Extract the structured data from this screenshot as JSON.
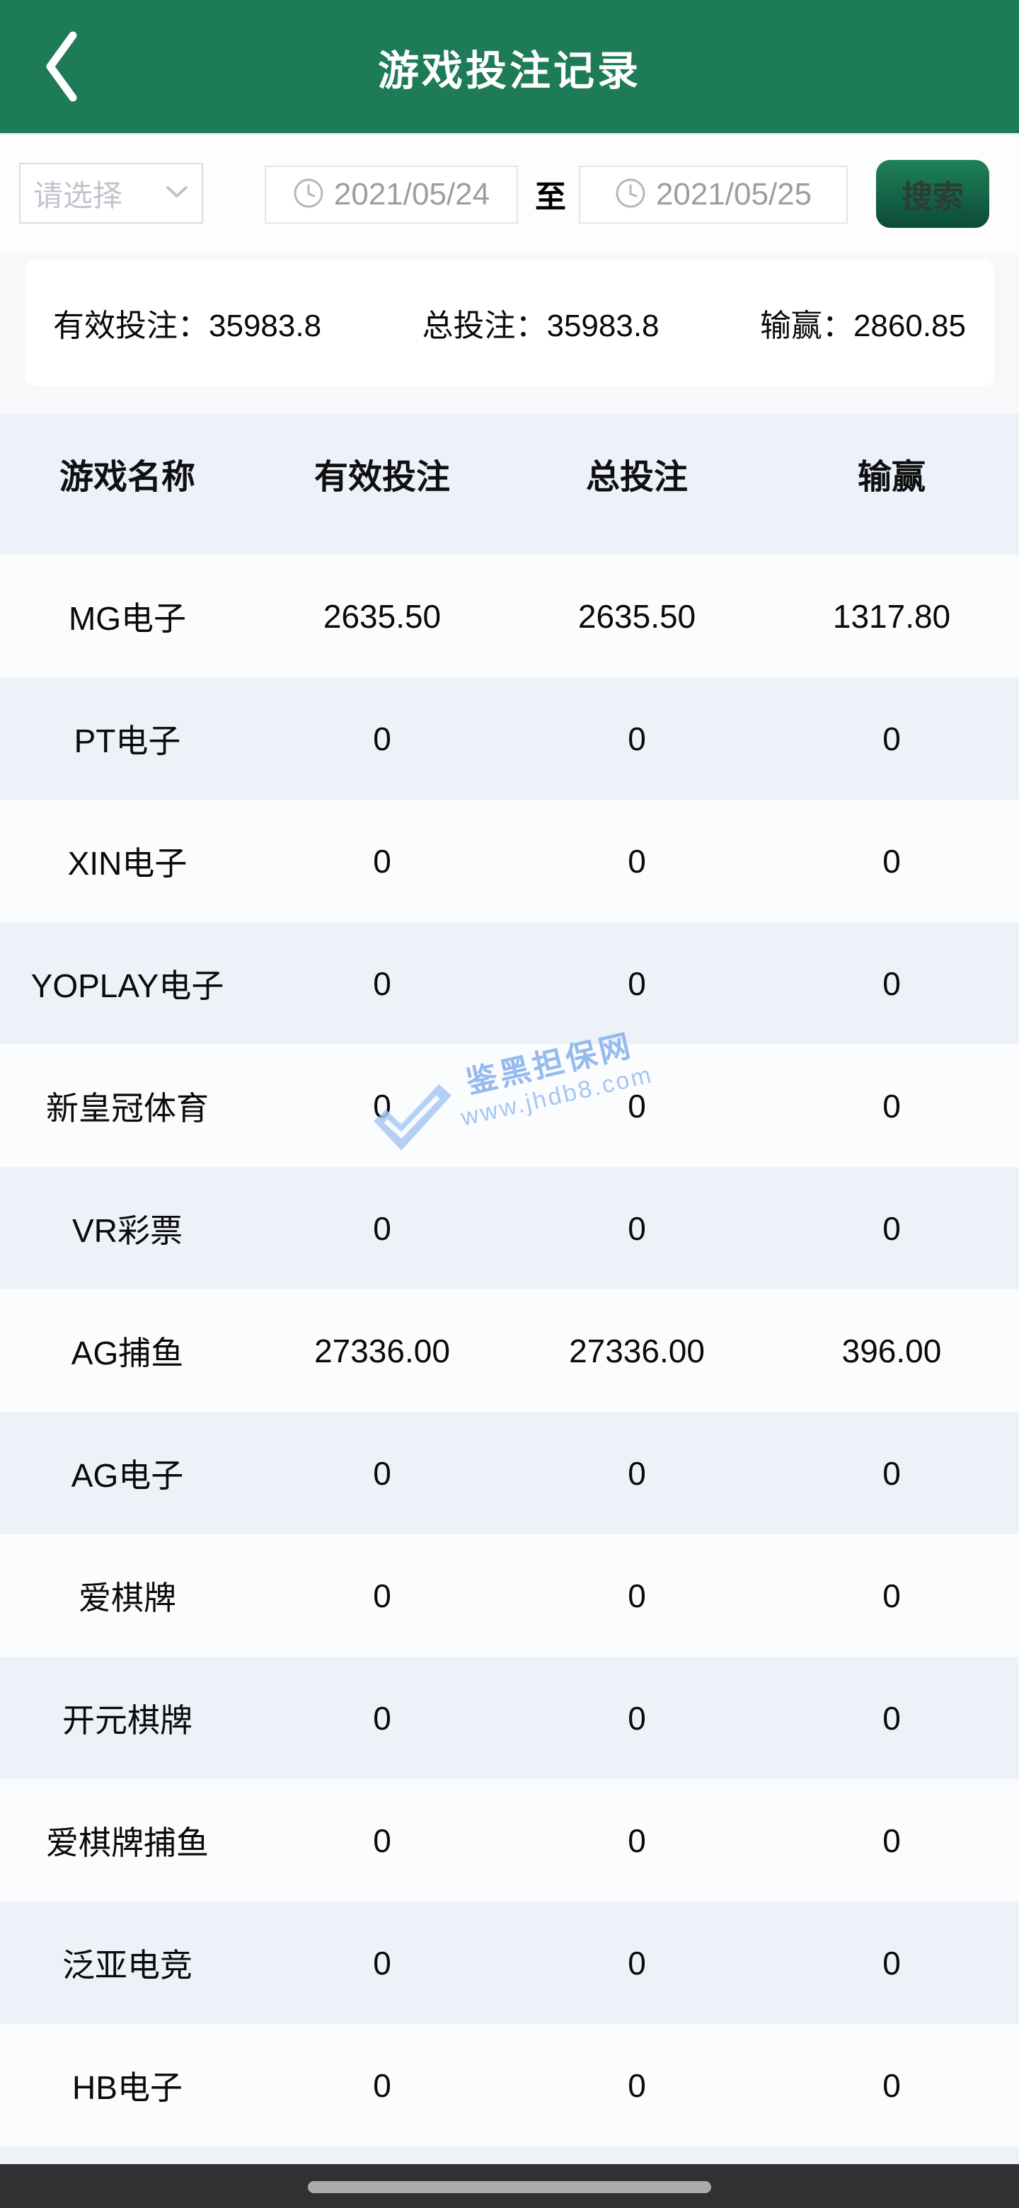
{
  "header": {
    "title": "游戏投注记录"
  },
  "filters": {
    "select_placeholder": "请选择",
    "date_from": "2021/05/24",
    "to_label": "至",
    "date_to": "2021/05/25",
    "search_label": "搜索"
  },
  "summary": {
    "valid_label": "有效投注：",
    "valid_value": "35983.8",
    "total_label": "总投注：",
    "total_value": "35983.8",
    "winloss_label": "输赢：",
    "winloss_value": "2860.85"
  },
  "table": {
    "columns": [
      "游戏名称",
      "有效投注",
      "总投注",
      "输赢"
    ],
    "rows": [
      {
        "name": "MG电子",
        "valid": "2635.50",
        "total": "2635.50",
        "winloss": "1317.80"
      },
      {
        "name": "PT电子",
        "valid": "0",
        "total": "0",
        "winloss": "0"
      },
      {
        "name": "XIN电子",
        "valid": "0",
        "total": "0",
        "winloss": "0"
      },
      {
        "name": "YOPLAY电子",
        "valid": "0",
        "total": "0",
        "winloss": "0"
      },
      {
        "name": "新皇冠体育",
        "valid": "0",
        "total": "0",
        "winloss": "0"
      },
      {
        "name": "VR彩票",
        "valid": "0",
        "total": "0",
        "winloss": "0"
      },
      {
        "name": "AG捕鱼",
        "valid": "27336.00",
        "total": "27336.00",
        "winloss": "396.00"
      },
      {
        "name": "AG电子",
        "valid": "0",
        "total": "0",
        "winloss": "0"
      },
      {
        "name": "爱棋牌",
        "valid": "0",
        "total": "0",
        "winloss": "0"
      },
      {
        "name": "开元棋牌",
        "valid": "0",
        "total": "0",
        "winloss": "0"
      },
      {
        "name": "爱棋牌捕鱼",
        "valid": "0",
        "total": "0",
        "winloss": "0"
      },
      {
        "name": "泛亚电竞",
        "valid": "0",
        "total": "0",
        "winloss": "0"
      },
      {
        "name": "HB电子",
        "valid": "0",
        "total": "0",
        "winloss": "0"
      }
    ]
  },
  "watermark": {
    "line1": "鉴黑担保网",
    "line2": "www.jhdb8.com"
  },
  "colors": {
    "header_green": "#1e7b57",
    "search_gradient_top": "#1f8259",
    "search_gradient_bottom": "#0c4a37",
    "row_alt_blue": "#edf2f9",
    "row_white": "#fbfcfe",
    "bottom_bar": "#313133",
    "watermark_blue": "#8ab2ec"
  }
}
